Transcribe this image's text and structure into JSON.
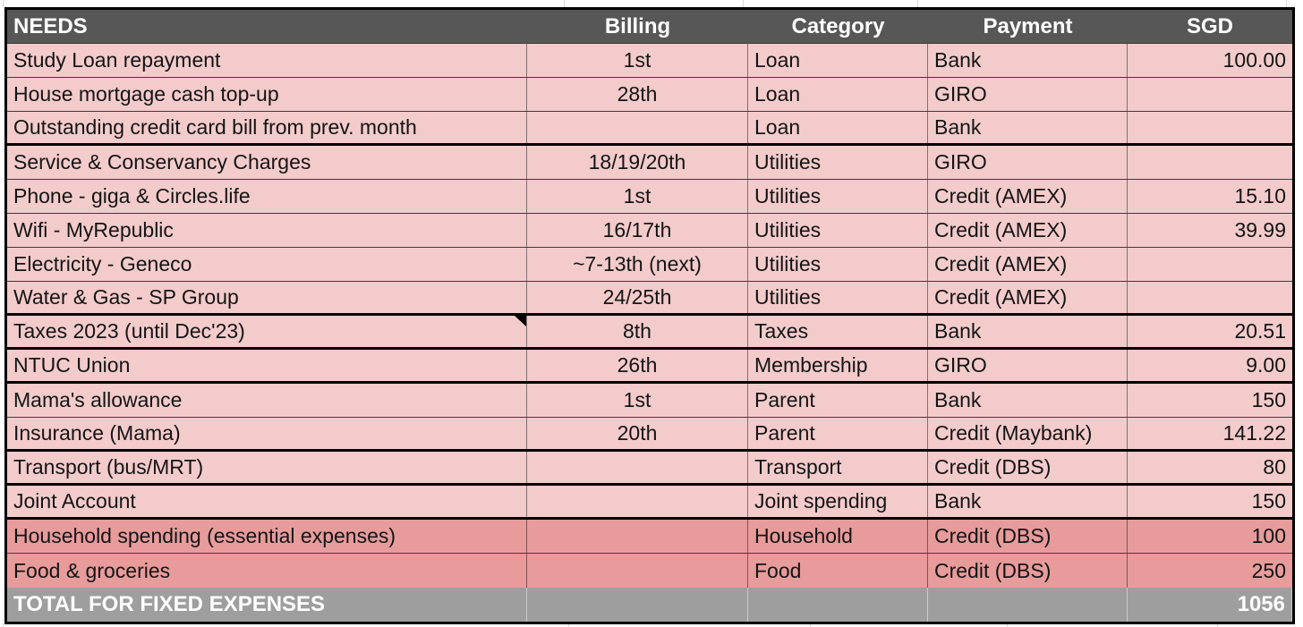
{
  "table": {
    "columns": [
      {
        "key": "need",
        "label": "NEEDS"
      },
      {
        "key": "billing",
        "label": "Billing"
      },
      {
        "key": "category",
        "label": "Category"
      },
      {
        "key": "payment",
        "label": "Payment"
      },
      {
        "key": "sgd",
        "label": "SGD"
      }
    ],
    "rows": [
      {
        "need": "Study Loan repayment",
        "billing": "1st",
        "category": "Loan",
        "payment": "Bank",
        "sgd": "100.00",
        "group": "loan"
      },
      {
        "need": "House mortgage cash top-up",
        "billing": "28th",
        "category": "Loan",
        "payment": "GIRO",
        "sgd": "",
        "group": "loan"
      },
      {
        "need": "Outstanding credit card bill from prev. month",
        "billing": "",
        "category": "Loan",
        "payment": "Bank",
        "sgd": "",
        "group": "loan"
      },
      {
        "need": "Service & Conservancy Charges",
        "billing": "18/19/20th",
        "category": "Utilities",
        "payment": "GIRO",
        "sgd": "",
        "group": "utilities"
      },
      {
        "need": "Phone - giga & Circles.life",
        "billing": "1st",
        "category": "Utilities",
        "payment": "Credit (AMEX)",
        "sgd": "15.10",
        "group": "utilities"
      },
      {
        "need": "Wifi - MyRepublic",
        "billing": "16/17th",
        "category": "Utilities",
        "payment": "Credit (AMEX)",
        "sgd": "39.99",
        "group": "utilities"
      },
      {
        "need": "Electricity - Geneco",
        "billing": "~7-13th (next)",
        "category": "Utilities",
        "payment": "Credit (AMEX)",
        "sgd": "",
        "group": "utilities"
      },
      {
        "need": "Water & Gas - SP Group",
        "billing": "24/25th",
        "category": "Utilities",
        "payment": "Credit (AMEX)",
        "sgd": "",
        "group": "utilities"
      },
      {
        "need": "Taxes 2023 (until Dec'23)",
        "billing": "8th",
        "category": "Taxes",
        "payment": "Bank",
        "sgd": "20.51",
        "group": "taxes",
        "note_marker": true
      },
      {
        "need": "NTUC Union",
        "billing": "26th",
        "category": "Membership",
        "payment": "GIRO",
        "sgd": "9.00",
        "group": "membership"
      },
      {
        "need": "Mama's allowance",
        "billing": "1st",
        "category": "Parent",
        "payment": "Bank",
        "sgd": "150",
        "group": "parent"
      },
      {
        "need": "Insurance (Mama)",
        "billing": "20th",
        "category": "Parent",
        "payment": "Credit (Maybank)",
        "sgd": "141.22",
        "group": "parent"
      },
      {
        "need": "Transport (bus/MRT)",
        "billing": "",
        "category": "Transport",
        "payment": "Credit (DBS)",
        "sgd": "80",
        "group": "transport"
      },
      {
        "need": "Joint Account",
        "billing": "",
        "category": "Joint spending",
        "payment": "Bank",
        "sgd": "150",
        "group": "joint"
      },
      {
        "need": "Household spending (essential expenses)",
        "billing": "",
        "category": "Household",
        "payment": "Credit (DBS)",
        "sgd": "100",
        "group": "variable",
        "emphasis": true
      },
      {
        "need": "Food & groceries",
        "billing": "",
        "category": "Food",
        "payment": "Credit (DBS)",
        "sgd": "250",
        "group": "variable",
        "emphasis": true
      }
    ],
    "total": {
      "label": "TOTAL FOR FIXED EXPENSES",
      "sgd": "1056"
    }
  },
  "colors": {
    "header_bg": "#575757",
    "header_text": "#ffffff",
    "row_pink": "#f3cbcb",
    "row_dark_pink": "#e89b9b",
    "total_bg": "#9e9e9e",
    "total_text": "#ffffff",
    "border_black": "#000000",
    "text": "#141414"
  }
}
